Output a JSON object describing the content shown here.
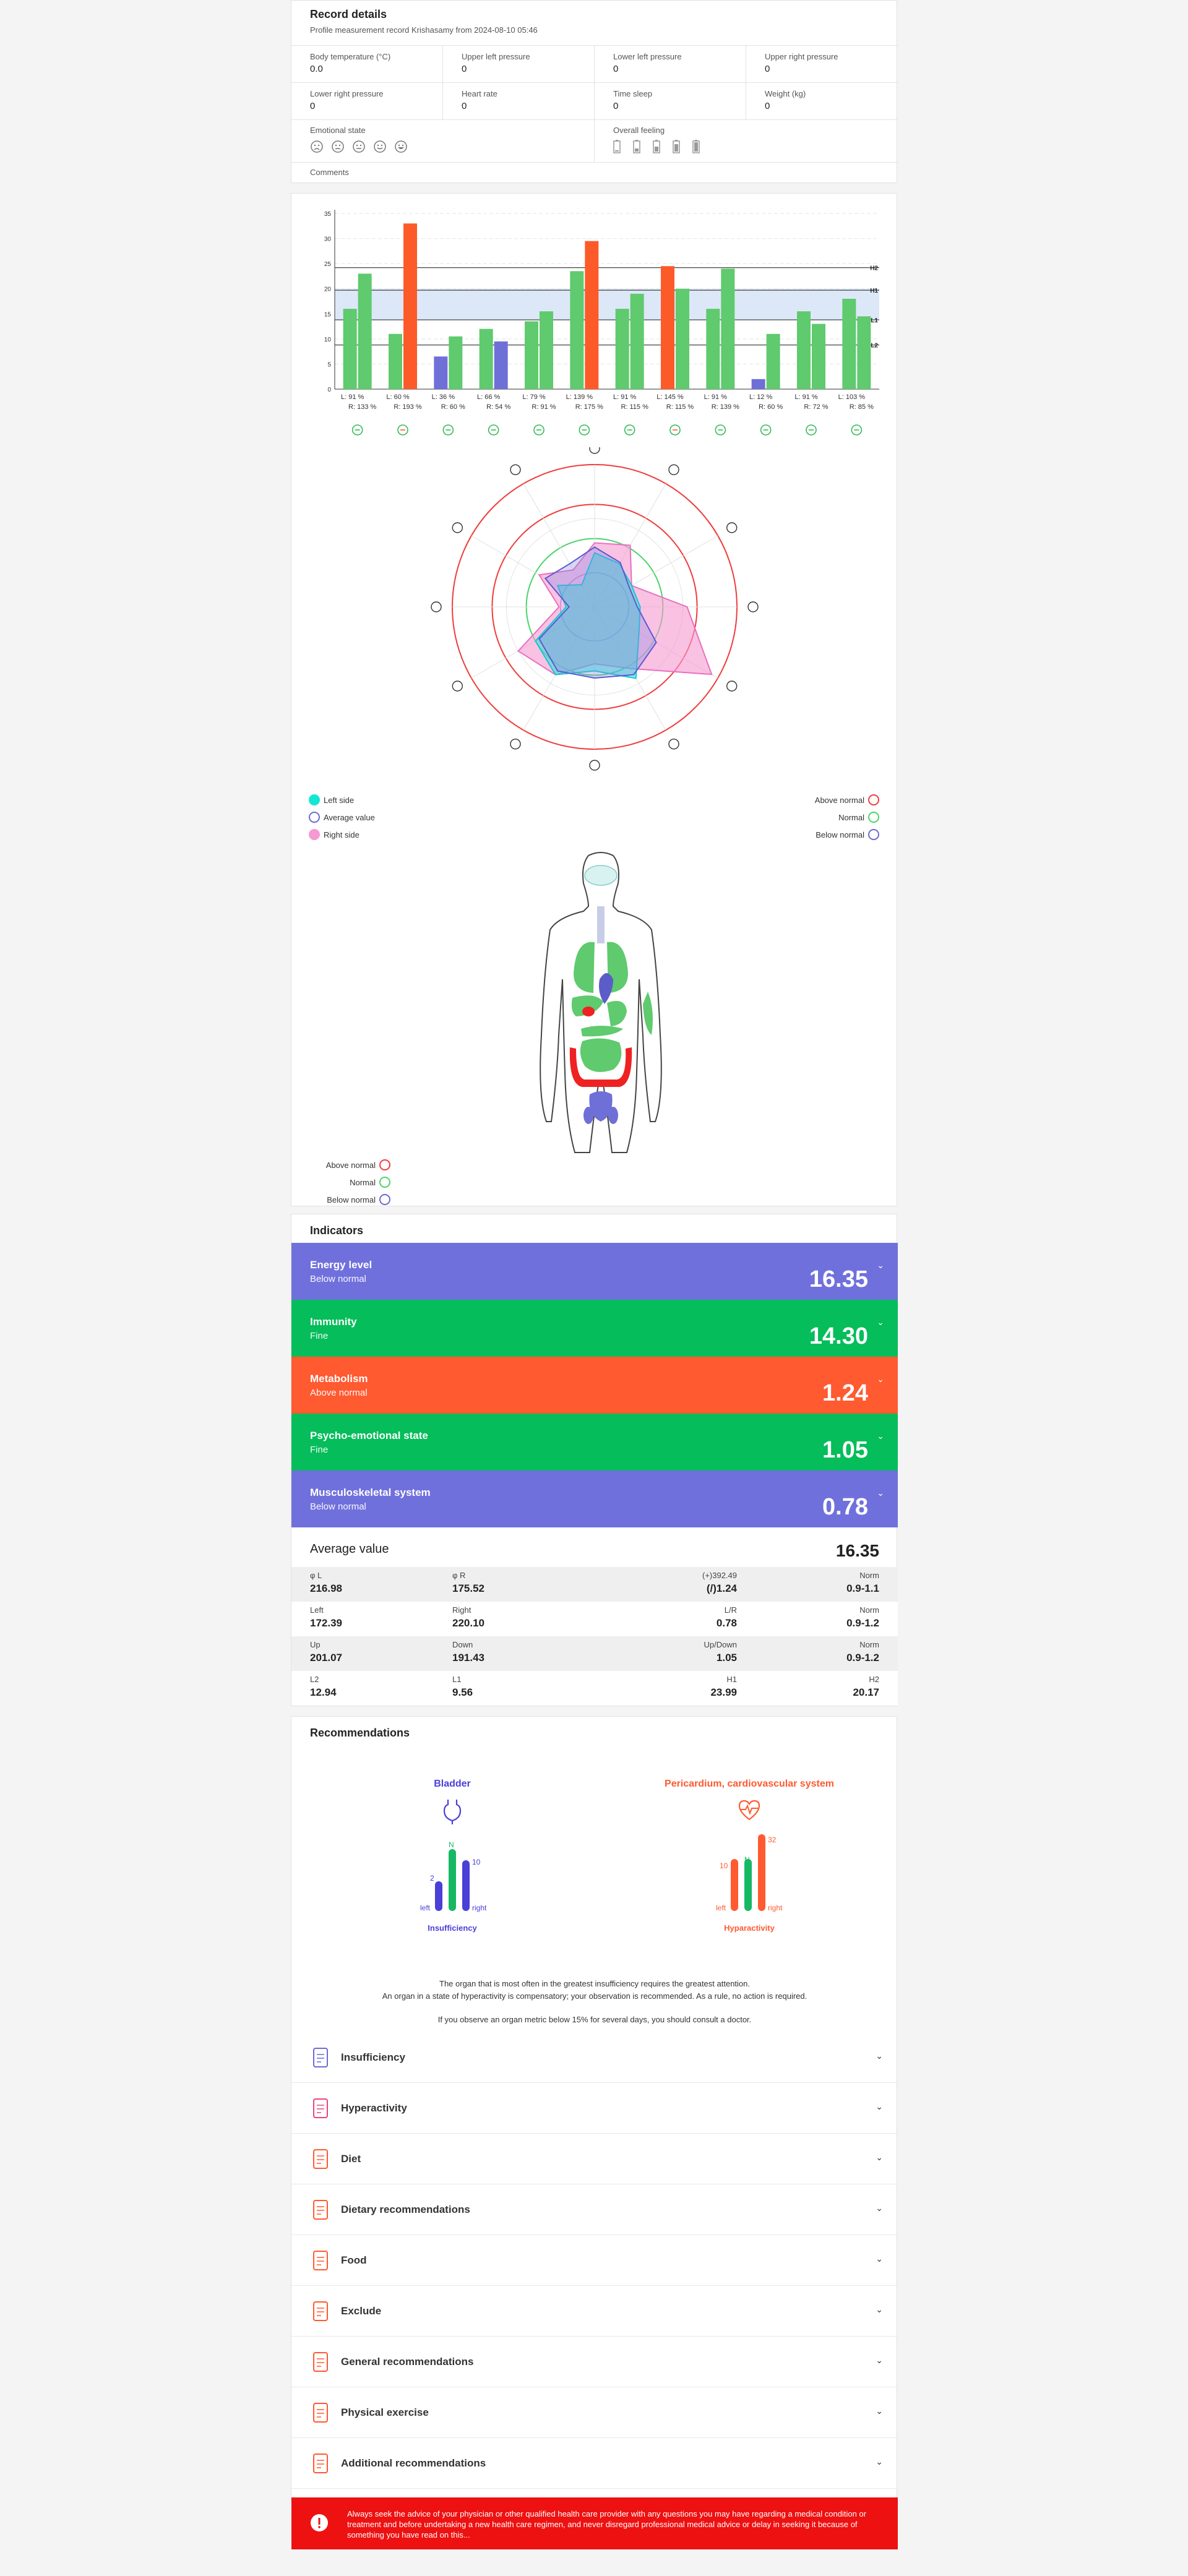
{
  "record": {
    "title": "Record details",
    "subtitle": "Profile measurement record Krishasamy from 2024-08-10 05:46",
    "fields": [
      {
        "label": "Body temperature (°C)",
        "value": "0.0"
      },
      {
        "label": "Upper left pressure",
        "value": "0"
      },
      {
        "label": "Lower left pressure",
        "value": "0"
      },
      {
        "label": "Upper right pressure",
        "value": "0"
      },
      {
        "label": "Lower right pressure",
        "value": "0"
      },
      {
        "label": "Heart rate",
        "value": "0"
      },
      {
        "label": "Time sleep",
        "value": "0"
      },
      {
        "label": "Weight (kg)",
        "value": "0"
      }
    ],
    "emotional_label": "Emotional state",
    "overall_label": "Overall feeling",
    "comments_label": "Comments"
  },
  "chart_data": [
    {
      "type": "bar",
      "categories": [
        "L: 91 %\nR: 133 %",
        "L: 60 %\nR: 193 %",
        "L: 36 %\nR: 60 %",
        "L: 66 %\nR: 54 %",
        "L: 79 %\nR: 91 %",
        "L: 139 %\nR: 175 %",
        "L: 91 %\nR: 115 %",
        "L: 145 %\nR: 115 %",
        "L: 91 %\nR: 139 %",
        "L: 12 %\nR: 60 %",
        "L: 91 %\nR: 72 %",
        "L: 103 %\nR: 85 %"
      ],
      "cat_left": [
        "L: 91 %",
        "L: 60 %",
        "L: 36 %",
        "L: 66 %",
        "L: 79 %",
        "L: 139 %",
        "L: 91 %",
        "L: 145 %",
        "L: 91 %",
        "L: 12 %",
        "L: 91 %",
        "L: 103 %"
      ],
      "cat_right": [
        "R: 133 %",
        "R: 193 %",
        "R: 60 %",
        "R: 54 %",
        "R: 91 %",
        "R: 175 %",
        "R: 115 %",
        "R: 115 %",
        "R: 139 %",
        "R: 60 %",
        "R: 72 %",
        "R: 85 %"
      ],
      "series": [
        {
          "values": [
            16,
            11,
            6.5,
            12,
            13.5,
            23.5,
            16,
            24.5,
            16,
            2,
            15.5,
            18
          ],
          "colors": [
            "#5fca6e",
            "#5fca6e",
            "#6f6fd8",
            "#5fca6e",
            "#5fca6e",
            "#5fca6e",
            "#5fca6e",
            "#fd5a2a",
            "#5fca6e",
            "#6f6fd8",
            "#5fca6e",
            "#5fca6e"
          ]
        },
        {
          "values": [
            23,
            33,
            10.5,
            9.5,
            15.5,
            29.5,
            19,
            20,
            24,
            11,
            13,
            14.5
          ],
          "colors": [
            "#5fca6e",
            "#fd5a2a",
            "#5fca6e",
            "#6f6fd8",
            "#5fca6e",
            "#fd5a2a",
            "#5fca6e",
            "#5fca6e",
            "#5fca6e",
            "#5fca6e",
            "#5fca6e",
            "#5fca6e"
          ]
        }
      ],
      "yticks": [
        0,
        5,
        10,
        15,
        20,
        25,
        30,
        35
      ],
      "ylim": [
        0,
        35
      ],
      "ref_lines": [
        {
          "name": "H2",
          "value": 24.2
        },
        {
          "name": "H1",
          "value": 19.7
        },
        {
          "name": "L1",
          "value": 13.8
        },
        {
          "name": "L2",
          "value": 8.8
        }
      ],
      "band": [
        13.8,
        20
      ]
    },
    {
      "type": "radar",
      "axes": 12,
      "left_side": [
        0.38,
        0.35,
        0.3,
        0.32,
        0.36,
        0.58,
        0.45,
        0.55,
        0.48,
        0.2,
        0.3,
        0.18
      ],
      "average": [
        0.42,
        0.36,
        0.28,
        0.3,
        0.5,
        0.55,
        0.5,
        0.52,
        0.45,
        0.18,
        0.4,
        0.35
      ],
      "right_side": [
        0.45,
        0.5,
        0.3,
        0.65,
        0.95,
        0.5,
        0.4,
        0.55,
        0.62,
        0.25,
        0.45,
        0.3
      ]
    }
  ],
  "radar_legend": {
    "left": [
      "Left side",
      "Average value",
      "Right side"
    ],
    "right": [
      "Above normal",
      "Normal",
      "Below normal"
    ]
  },
  "body_legend": [
    "Above normal",
    "Normal",
    "Below normal"
  ],
  "colors": {
    "blue": "#7070dd",
    "green": "#05bd5a",
    "red": "#ff5a30",
    "alert": "#ee1111"
  },
  "indicators": {
    "title": "Indicators",
    "items": [
      {
        "title": "Energy level",
        "status": "Below normal",
        "value": "16.35",
        "color": "#7070dd"
      },
      {
        "title": "Immunity",
        "status": "Fine",
        "value": "14.30",
        "color": "#05bd5a"
      },
      {
        "title": "Metabolism",
        "status": "Above normal",
        "value": "1.24",
        "color": "#ff5a30"
      },
      {
        "title": "Psycho-emotional state",
        "status": "Fine",
        "value": "1.05",
        "color": "#05bd5a"
      },
      {
        "title": "Musculoskeletal system",
        "status": "Below normal",
        "value": "0.78",
        "color": "#7070dd"
      }
    ],
    "average_label": "Average value",
    "average_value": "16.35",
    "table": [
      [
        {
          "l": "φ L",
          "v": "216.98"
        },
        {
          "l": "φ R",
          "v": "175.52"
        },
        {
          "l": "(+)392.49",
          "v": "(/)1.24"
        },
        {
          "l": "Norm",
          "v": "0.9-1.1"
        }
      ],
      [
        {
          "l": "Left",
          "v": "172.39"
        },
        {
          "l": "Right",
          "v": "220.10"
        },
        {
          "l": "L/R",
          "v": "0.78"
        },
        {
          "l": "Norm",
          "v": "0.9-1.2"
        }
      ],
      [
        {
          "l": "Up",
          "v": "201.07"
        },
        {
          "l": "Down",
          "v": "191.43"
        },
        {
          "l": "Up/Down",
          "v": "1.05"
        },
        {
          "l": "Norm",
          "v": "0.9-1.2"
        }
      ],
      [
        {
          "l": "L2",
          "v": "12.94"
        },
        {
          "l": "L1",
          "v": "9.56"
        },
        {
          "l": "H1",
          "v": "23.99"
        },
        {
          "l": "H2",
          "v": "20.17"
        }
      ]
    ]
  },
  "recommendations": {
    "title": "Recommendations",
    "left": {
      "name": "Bladder",
      "low": "2",
      "high": "10",
      "n": "N",
      "left": "left",
      "right": "right",
      "status": "Insufficiency"
    },
    "right": {
      "name": "Pericardium, cardiovascular system",
      "low": "10",
      "high": "32",
      "n": "N",
      "left": "left",
      "right": "right",
      "status": "Hyparactivity"
    },
    "note1": "The organ that is most often in the greatest insufficiency requires the greatest attention.",
    "note2": "An organ in a state of hyperactivity is compensatory; your observation is recommended. As a rule, no action is required.",
    "note3": "If you observe an organ metric below 15% for several days, you should consult a doctor.",
    "accordion": [
      "Insufficiency",
      "Hyperactivity",
      "Diet",
      "Dietary recommendations",
      "Food",
      "Exclude",
      "General recommendations",
      "Physical exercise",
      "Additional recommendations"
    ]
  },
  "disclaimer": "Always seek the advice of your physician or other qualified health care provider with any questions you may have regarding a medical condition or treatment and before undertaking a new health care regimen, and never disregard professional medical advice or delay in seeking it because of something you have read on this..."
}
